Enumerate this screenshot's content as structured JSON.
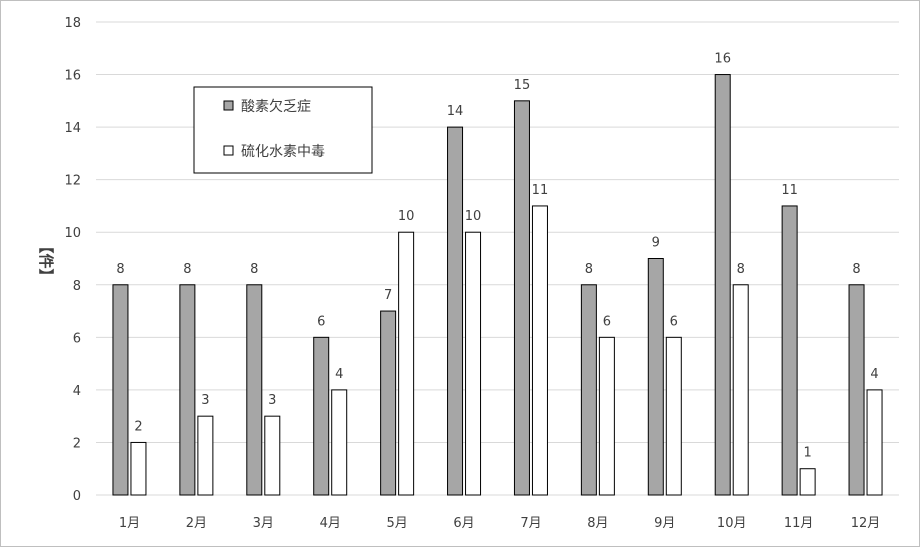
{
  "chart_data": {
    "type": "bar",
    "title": "",
    "xlabel": "",
    "ylabel": "【件】",
    "ylim": [
      0,
      18
    ],
    "y_ticks": [
      0,
      2,
      4,
      6,
      8,
      10,
      12,
      14,
      16,
      18
    ],
    "grid": true,
    "legend_position": "top-left",
    "categories": [
      "1月",
      "2月",
      "3月",
      "4月",
      "5月",
      "6月",
      "7月",
      "8月",
      "9月",
      "10月",
      "11月",
      "12月"
    ],
    "series": [
      {
        "name": "酸素欠乏症",
        "color": "#a6a6a6",
        "values": [
          8,
          8,
          8,
          6,
          7,
          14,
          15,
          8,
          9,
          16,
          11,
          8
        ]
      },
      {
        "name": "硫化水素中毒",
        "color": "#ffffff",
        "values": [
          2,
          3,
          3,
          4,
          10,
          10,
          11,
          6,
          6,
          8,
          1,
          4
        ]
      }
    ]
  }
}
